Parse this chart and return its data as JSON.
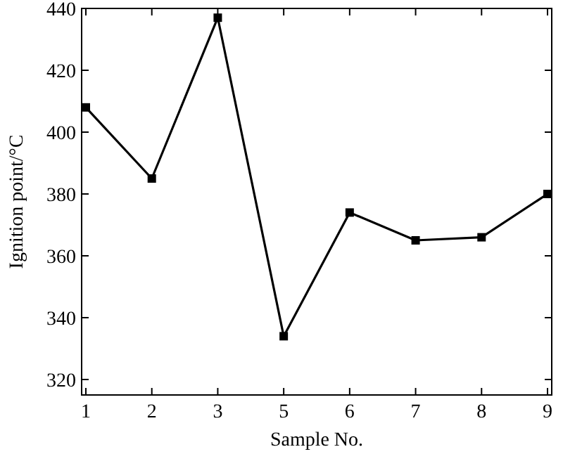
{
  "chart_data": {
    "type": "line",
    "xlabel": "Sample No.",
    "ylabel": "Ignition point/°C",
    "categories": [
      "1",
      "2",
      "3",
      "5",
      "6",
      "7",
      "8",
      "9"
    ],
    "series": [
      {
        "color": "#000000",
        "values": [
          408,
          385,
          437,
          334,
          374,
          365,
          366,
          380
        ]
      }
    ],
    "ylim": [
      315,
      440
    ],
    "yticks": [
      320,
      340,
      360,
      380,
      400,
      420,
      440
    ],
    "marker": "square",
    "line_style": "solid"
  }
}
